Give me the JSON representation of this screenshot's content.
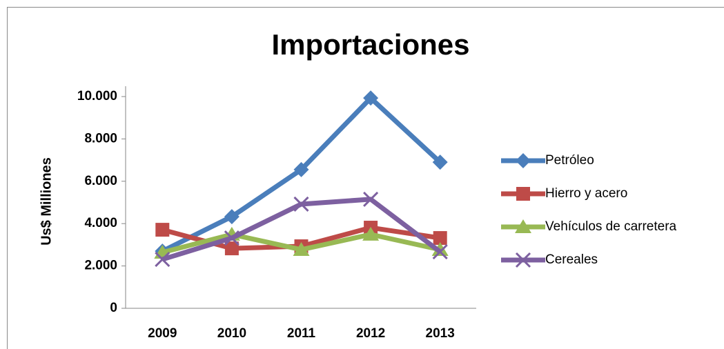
{
  "chart_data": {
    "type": "line",
    "title": "Importaciones",
    "y_label": "Us$ Milliones",
    "categories": [
      "2009",
      "2010",
      "2011",
      "2012",
      "2013"
    ],
    "series": [
      {
        "name": "Petróleo",
        "color": "#4a7ebb",
        "marker": "diamond",
        "values": [
          2700,
          4330,
          6550,
          9930,
          6900
        ]
      },
      {
        "name": "Hierro y acero",
        "color": "#be4b48",
        "marker": "square",
        "values": [
          3710,
          2830,
          2930,
          3810,
          3320
        ]
      },
      {
        "name": "Vehículos de carretera",
        "color": "#98b954",
        "marker": "triangle",
        "values": [
          2640,
          3490,
          2770,
          3490,
          2770
        ]
      },
      {
        "name": "Cereales",
        "color": "#7d60a0",
        "marker": "x",
        "values": [
          2310,
          3320,
          4920,
          5150,
          2670
        ]
      }
    ],
    "ylim": [
      0,
      10000
    ],
    "yticks": [
      0,
      {
        "value": 2000,
        "label": "2.000"
      },
      {
        "value": 4000,
        "label": "4.000"
      },
      {
        "value": 6000,
        "label": "6.000"
      },
      {
        "value": 8000,
        "label": "8.000"
      },
      {
        "value": 10000,
        "label": "10.000"
      }
    ],
    "grid": false,
    "legend": "right"
  }
}
